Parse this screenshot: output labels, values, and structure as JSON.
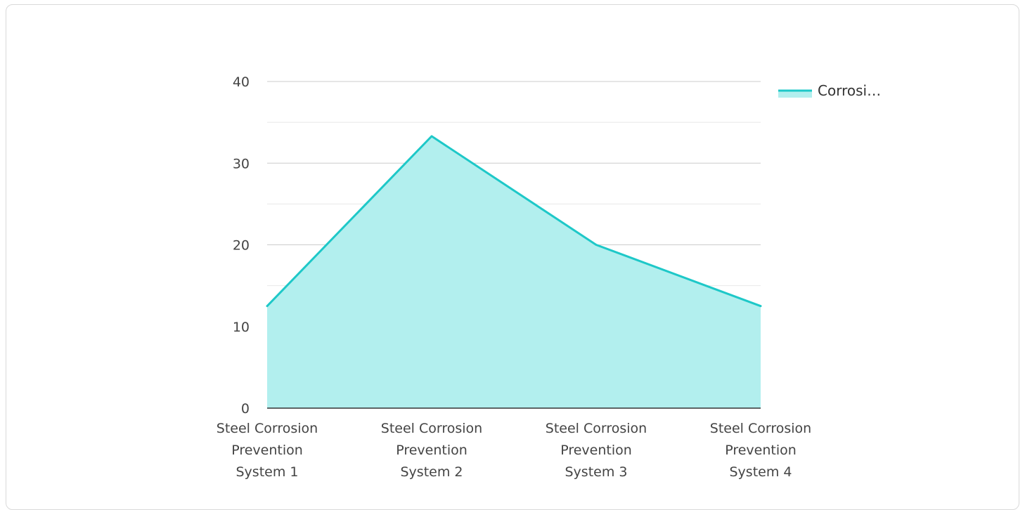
{
  "chart_data": {
    "type": "area",
    "categories": [
      [
        "Steel Corrosion",
        "Prevention",
        "System 1"
      ],
      [
        "Steel Corrosion",
        "Prevention",
        "System 2"
      ],
      [
        "Steel Corrosion",
        "Prevention",
        "System 3"
      ],
      [
        "Steel Corrosion",
        "Prevention",
        "System 4"
      ]
    ],
    "series": [
      {
        "name": "Corrosi…",
        "values": [
          12.5,
          33.3,
          20,
          12.5
        ],
        "color": "#1ec8c8",
        "fill": "#b2efee"
      }
    ],
    "yticks": [
      0,
      10,
      20,
      30,
      40
    ],
    "ylim": [
      0,
      40
    ],
    "grid": true,
    "legend": "top-right"
  }
}
